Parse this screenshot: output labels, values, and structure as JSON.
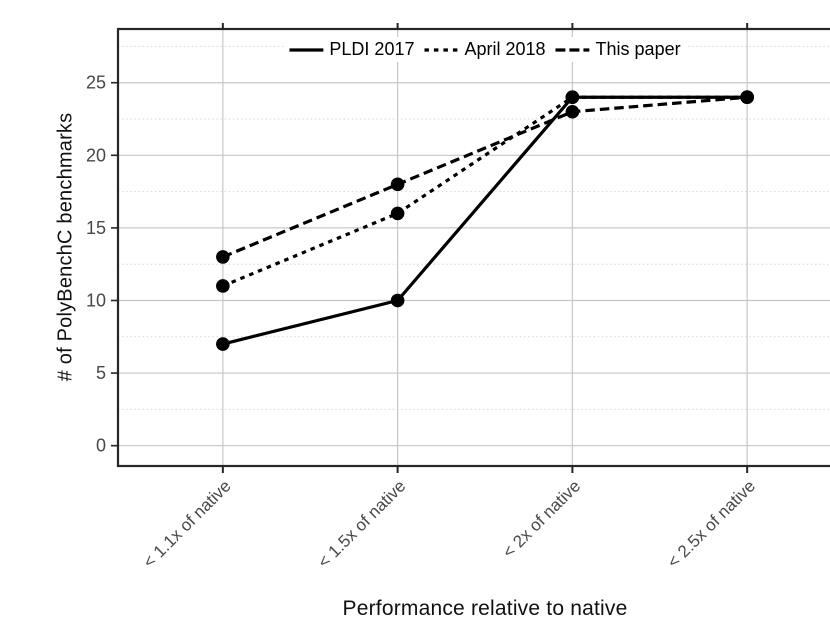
{
  "chart_data": {
    "type": "line",
    "title": "",
    "xlabel": "Performance relative to native",
    "ylabel": "# of PolyBenchC benchmarks",
    "categories": [
      "< 1.1x of native",
      "< 1.5x of native",
      "< 2x of native",
      "< 2.5x of native"
    ],
    "series": [
      {
        "name": "PLDI 2017",
        "line_style": "solid",
        "marker": "circle",
        "color": "#000000",
        "values": [
          7,
          10,
          24,
          24
        ]
      },
      {
        "name": "April 2018",
        "line_style": "dotted",
        "marker": "circle",
        "color": "#000000",
        "values": [
          11,
          16,
          24,
          24
        ]
      },
      {
        "name": "This paper",
        "line_style": "dashed",
        "marker": "circle",
        "color": "#000000",
        "values": [
          13,
          18,
          23,
          24
        ]
      }
    ],
    "yticks": [
      0,
      5,
      10,
      15,
      20,
      25
    ],
    "ylim": [
      -1.4,
      28.7
    ],
    "grid": {
      "major_horizontal": true,
      "minor_horizontal": "dotted",
      "vertical_at_categories": true
    },
    "legend": {
      "position": "top-center",
      "entries": [
        "PLDI 2017",
        "April 2018",
        "This paper"
      ]
    }
  },
  "style": {
    "series_color": "#000000",
    "tick_label_color": "#484848",
    "axis_label_color": "#111111",
    "grid_major_color": "#c7c7c7",
    "grid_minor_color": "#d6d6d6",
    "frame_color": "#262626",
    "background": "#ffffff"
  }
}
